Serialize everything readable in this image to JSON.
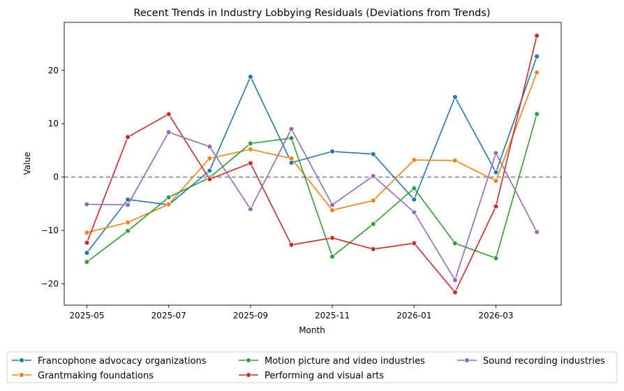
{
  "chart_data": {
    "type": "line",
    "title": "Recent Trends in Industry Lobbying Residuals (Deviations from Trends)",
    "xlabel": "Month",
    "ylabel": "Value",
    "x": [
      "2025-05",
      "2025-06",
      "2025-07",
      "2025-08",
      "2025-09",
      "2025-10",
      "2025-11",
      "2025-12",
      "2026-01",
      "2026-02",
      "2026-03",
      "2026-04"
    ],
    "x_tick_labels": [
      "2025-05",
      "2025-07",
      "2025-09",
      "2025-11",
      "2026-01",
      "2026-03"
    ],
    "ylim": [
      -24,
      29
    ],
    "y_ticks": [
      -20,
      -10,
      0,
      10,
      20
    ],
    "reference_line": {
      "y": 0,
      "style": "dashed",
      "color": "#808080"
    },
    "grid": false,
    "legend_position": "bottom-center",
    "series": [
      {
        "name": "Francophone advocacy organizations",
        "color": "#1f77b4",
        "values": [
          -14.2,
          -4.2,
          -5.2,
          1.2,
          18.8,
          2.7,
          4.8,
          4.3,
          -4.2,
          15.0,
          0.9,
          22.6
        ]
      },
      {
        "name": "Grantmaking foundations",
        "color": "#ff7f0e",
        "values": [
          -10.4,
          -8.5,
          -5.1,
          3.5,
          5.2,
          3.5,
          -6.2,
          -4.4,
          3.2,
          3.1,
          -0.7,
          19.6
        ]
      },
      {
        "name": "Motion picture and video industries",
        "color": "#2ca02c",
        "values": [
          -15.9,
          -10.1,
          -3.8,
          -0.1,
          6.3,
          7.3,
          -14.9,
          -8.8,
          -2.1,
          -12.4,
          -15.2,
          11.8
        ]
      },
      {
        "name": "Performing and visual arts",
        "color": "#d62728",
        "values": [
          -12.3,
          7.5,
          11.8,
          -0.4,
          2.6,
          -12.7,
          -11.4,
          -13.5,
          -12.4,
          -21.6,
          -5.5,
          26.5
        ]
      },
      {
        "name": "Sound recording industries",
        "color": "#9467bd",
        "values": [
          -5.1,
          -5.2,
          8.4,
          5.7,
          -6.0,
          9.0,
          -5.2,
          0.2,
          -6.6,
          -19.3,
          4.5,
          -10.3
        ]
      }
    ]
  }
}
